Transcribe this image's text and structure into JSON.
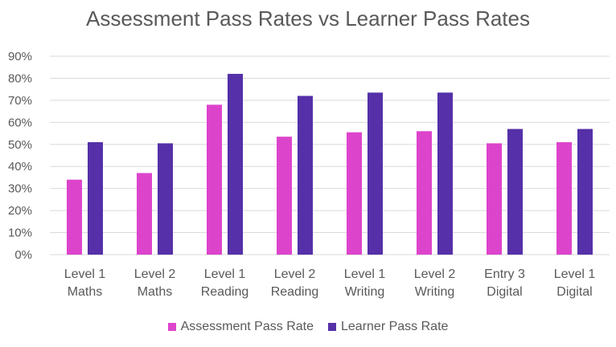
{
  "chart_data": {
    "type": "bar",
    "title": "Assessment Pass Rates vs Learner Pass Rates",
    "categories": [
      [
        "Level 1",
        "Maths"
      ],
      [
        "Level 2",
        "Maths"
      ],
      [
        "Level 1",
        "Reading"
      ],
      [
        "Level 2",
        "Reading"
      ],
      [
        "Level 1",
        "Writing"
      ],
      [
        "Level 2",
        "Writing"
      ],
      [
        "Entry 3",
        "Digital"
      ],
      [
        "Level 1",
        "Digital"
      ]
    ],
    "series": [
      {
        "name": "Assessment Pass Rate",
        "color": "#dd44cc",
        "values": [
          34,
          37,
          68,
          53.5,
          55.5,
          56,
          50.5,
          51
        ]
      },
      {
        "name": "Learner Pass Rate",
        "color": "#5530a8",
        "values": [
          51,
          50.5,
          82,
          72,
          73.5,
          73.5,
          57,
          57
        ]
      }
    ],
    "ylim": [
      0,
      90
    ],
    "yticks": [
      "0%",
      "10%",
      "20%",
      "30%",
      "40%",
      "50%",
      "60%",
      "70%",
      "80%",
      "90%"
    ],
    "ytick_values": [
      0,
      10,
      20,
      30,
      40,
      50,
      60,
      70,
      80,
      90
    ],
    "grid": true,
    "legend_position": "bottom"
  }
}
